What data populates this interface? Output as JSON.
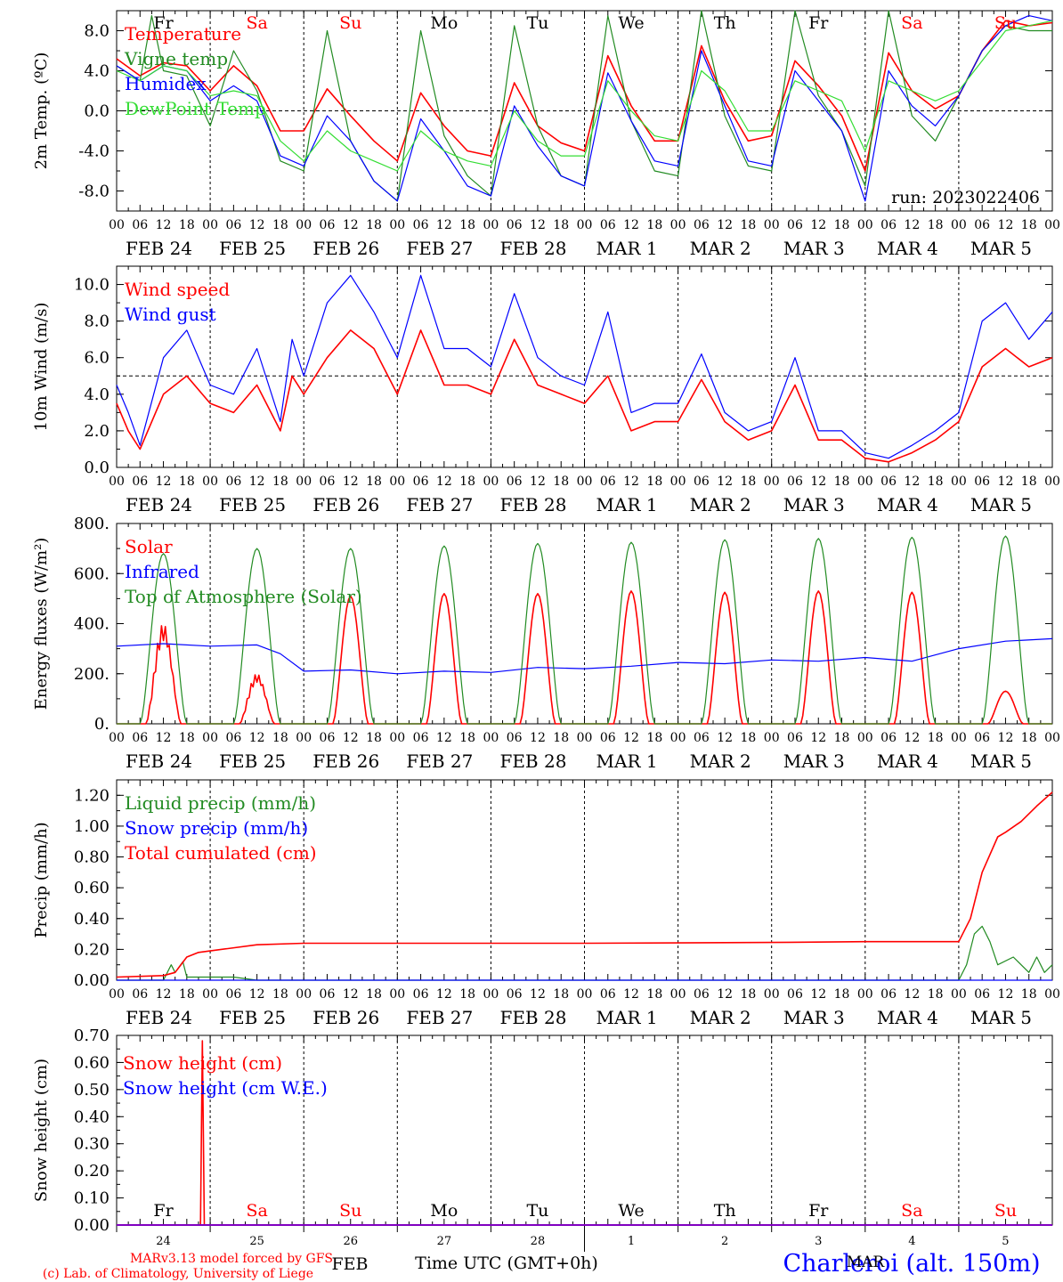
{
  "run_label": "run: 2023022406",
  "model_credit": "MARv3.13 model forced by GFS",
  "lab_credit": "(c) Lab. of Climatology, University of Liege",
  "station": "Charleroi (alt. 150m)",
  "x_axis": {
    "hour_labels": [
      "00",
      "06",
      "12",
      "18"
    ],
    "end_label": "00",
    "dates": [
      "FEB 24",
      "FEB 25",
      "FEB 26",
      "FEB 27",
      "FEB 28",
      "MAR 1",
      "MAR 2",
      "MAR 3",
      "MAR 4",
      "MAR 5"
    ],
    "weekdays": [
      {
        "label": "Fr",
        "weekend": false
      },
      {
        "label": "Sa",
        "weekend": true
      },
      {
        "label": "Su",
        "weekend": true
      },
      {
        "label": "Mo",
        "weekend": false
      },
      {
        "label": "Tu",
        "weekend": false
      },
      {
        "label": "We",
        "weekend": false
      },
      {
        "label": "Th",
        "weekend": false
      },
      {
        "label": "Fr",
        "weekend": false
      },
      {
        "label": "Sa",
        "weekend": true
      },
      {
        "label": "Su",
        "weekend": true
      }
    ],
    "day_numbers": [
      "24",
      "25",
      "26",
      "27",
      "28",
      "1",
      "2",
      "3",
      "4",
      "5"
    ],
    "month_feb": "FEB",
    "month_mar": "MAR",
    "time_title": "Time UTC (GMT+0h)"
  },
  "colors": {
    "red": "#ff0000",
    "green": "#228b22",
    "blue": "#0000ff",
    "lightgreen": "#33dd33",
    "weekend": "#ff0000"
  },
  "chart_data": [
    {
      "id": "temp",
      "type": "line",
      "ylabel": "2m Temp. (ºC)",
      "ylim": [
        -10,
        10
      ],
      "yticks": [
        -8,
        -4,
        0,
        4,
        8
      ],
      "tick_labels": [
        "-8.0",
        "-4.0",
        "0.0",
        "4.0",
        "8.0"
      ],
      "ref_line": 0,
      "x_unit": "hours since FEB 24 00 UTC",
      "series": [
        {
          "name": "Temperature",
          "color": "red",
          "x": [
            0,
            6,
            12,
            18,
            24,
            30,
            36,
            42,
            48,
            54,
            60,
            66,
            72,
            78,
            84,
            90,
            96,
            102,
            108,
            114,
            120,
            126,
            132,
            138,
            144,
            150,
            156,
            162,
            168,
            174,
            180,
            186,
            192,
            198,
            204,
            210,
            216,
            222,
            228,
            234,
            240
          ],
          "y": [
            5.2,
            3.5,
            4.8,
            4.5,
            2.0,
            4.5,
            2.5,
            -2.0,
            -2.0,
            2.2,
            -0.5,
            -3.0,
            -5.0,
            1.8,
            -1.5,
            -4.0,
            -4.5,
            2.8,
            -1.5,
            -3.2,
            -4.0,
            5.5,
            0.5,
            -3.0,
            -3.0,
            6.5,
            1.0,
            -3.0,
            -2.5,
            5.0,
            2.5,
            -0.5,
            -6.0,
            5.8,
            2.0,
            0.2,
            1.5,
            6.0,
            9.0,
            8.5,
            8.8
          ]
        },
        {
          "name": "Vigne temp",
          "color": "green",
          "x": [
            0,
            6,
            9,
            12,
            18,
            24,
            30,
            36,
            42,
            48,
            54,
            60,
            66,
            72,
            78,
            84,
            90,
            96,
            102,
            108,
            114,
            120,
            126,
            132,
            138,
            144,
            150,
            156,
            162,
            168,
            174,
            180,
            186,
            192,
            198,
            204,
            210,
            216,
            222,
            228,
            234,
            240
          ],
          "y": [
            4.5,
            3.0,
            9.5,
            4.0,
            3.5,
            -1.5,
            6.0,
            2.0,
            -5.0,
            -6.0,
            8.0,
            -3.0,
            -7.0,
            -9.0,
            8.0,
            -2.5,
            -6.5,
            -8.5,
            8.5,
            -1.5,
            -6.5,
            -7.5,
            9.5,
            -1.0,
            -6.0,
            -6.5,
            10.0,
            -0.5,
            -5.5,
            -6.0,
            10.0,
            1.5,
            -2.0,
            -7.5,
            10.0,
            -0.5,
            -3.0,
            1.5,
            6.0,
            8.5,
            8.0,
            8.0
          ]
        },
        {
          "name": "Humidex",
          "color": "blue",
          "x": [
            0,
            6,
            12,
            18,
            24,
            30,
            36,
            42,
            48,
            54,
            60,
            66,
            72,
            78,
            84,
            90,
            96,
            102,
            108,
            114,
            120,
            126,
            132,
            138,
            144,
            150,
            156,
            162,
            168,
            174,
            180,
            186,
            192,
            198,
            204,
            210,
            216,
            222,
            228,
            234,
            240
          ],
          "y": [
            4.5,
            3.0,
            4.5,
            4.0,
            1.0,
            2.5,
            1.0,
            -4.5,
            -5.5,
            -0.5,
            -3.0,
            -7.0,
            -9.0,
            -0.8,
            -4.0,
            -7.5,
            -8.5,
            0.5,
            -3.5,
            -6.5,
            -7.5,
            3.8,
            -1.0,
            -5.0,
            -5.5,
            6.0,
            0.5,
            -5.0,
            -5.5,
            4.0,
            1.0,
            -2.0,
            -9.0,
            4.0,
            0.5,
            -1.5,
            1.5,
            6.0,
            8.5,
            9.5,
            9.0
          ]
        },
        {
          "name": "DewPoint Temp",
          "color": "lightgreen",
          "x": [
            0,
            6,
            12,
            18,
            24,
            30,
            36,
            42,
            48,
            54,
            60,
            66,
            72,
            78,
            84,
            90,
            96,
            102,
            108,
            114,
            120,
            126,
            132,
            138,
            144,
            150,
            156,
            162,
            168,
            174,
            180,
            186,
            192,
            198,
            204,
            210,
            216,
            222,
            228,
            234,
            240
          ],
          "y": [
            4.0,
            3.0,
            4.5,
            4.0,
            1.5,
            2.0,
            1.5,
            -3.0,
            -5.0,
            -2.0,
            -4.0,
            -5.0,
            -6.0,
            -2.0,
            -4.0,
            -5.0,
            -5.5,
            0.0,
            -3.0,
            -4.5,
            -4.5,
            3.0,
            0.0,
            -2.5,
            -3.0,
            4.0,
            2.0,
            -2.0,
            -2.0,
            3.0,
            2.0,
            1.0,
            -4.0,
            3.0,
            2.0,
            1.0,
            2.0,
            5.0,
            8.0,
            8.5,
            9.0
          ]
        }
      ]
    },
    {
      "id": "wind",
      "type": "line",
      "ylabel": "10m Wind (m/s)",
      "ylim": [
        0,
        11
      ],
      "yticks": [
        0,
        2,
        4,
        6,
        8,
        10
      ],
      "tick_labels": [
        "0.0",
        "2.0",
        "4.0",
        "6.0",
        "8.0",
        "10.0"
      ],
      "ref_line": 5,
      "series": [
        {
          "name": "Wind speed",
          "color": "red",
          "x": [
            0,
            3,
            6,
            12,
            18,
            24,
            30,
            36,
            42,
            45,
            48,
            54,
            60,
            66,
            72,
            78,
            84,
            90,
            96,
            102,
            108,
            114,
            120,
            126,
            132,
            138,
            144,
            150,
            156,
            162,
            168,
            174,
            180,
            186,
            192,
            198,
            204,
            210,
            216,
            222,
            228,
            234,
            240
          ],
          "y": [
            3.5,
            2.0,
            1.0,
            4.0,
            5.0,
            3.5,
            3.0,
            4.5,
            2.0,
            5.0,
            4.0,
            6.0,
            7.5,
            6.5,
            4.0,
            7.5,
            4.5,
            4.5,
            4.0,
            7.0,
            4.5,
            4.0,
            3.5,
            5.0,
            2.0,
            2.5,
            2.5,
            4.8,
            2.5,
            1.5,
            2.0,
            4.5,
            1.5,
            1.5,
            0.5,
            0.3,
            0.8,
            1.5,
            2.5,
            5.5,
            6.5,
            5.5,
            6.0
          ]
        },
        {
          "name": "Wind gust",
          "color": "blue",
          "x": [
            0,
            3,
            6,
            12,
            18,
            24,
            30,
            36,
            42,
            45,
            48,
            54,
            60,
            66,
            72,
            78,
            84,
            90,
            96,
            102,
            108,
            114,
            120,
            126,
            132,
            138,
            144,
            150,
            156,
            162,
            168,
            174,
            180,
            186,
            192,
            198,
            204,
            210,
            216,
            222,
            228,
            234,
            240
          ],
          "y": [
            4.5,
            3.0,
            1.2,
            6.0,
            7.5,
            4.5,
            4.0,
            6.5,
            2.5,
            7.0,
            5.0,
            9.0,
            10.5,
            8.5,
            6.0,
            10.5,
            6.5,
            6.5,
            5.5,
            9.5,
            6.0,
            5.0,
            4.5,
            8.5,
            3.0,
            3.5,
            3.5,
            6.2,
            3.0,
            2.0,
            2.5,
            6.0,
            2.0,
            2.0,
            0.8,
            0.5,
            1.2,
            2.0,
            3.0,
            8.0,
            9.0,
            7.0,
            8.5
          ]
        }
      ]
    },
    {
      "id": "energy",
      "type": "line",
      "ylabel": "Energy fluxes (W/m²)",
      "ylim": [
        0,
        800
      ],
      "yticks": [
        0,
        200,
        400,
        600,
        800
      ],
      "tick_labels": [
        "0.",
        "200.",
        "400.",
        "600.",
        "800."
      ],
      "series": [
        {
          "name": "Solar",
          "color": "red",
          "daily_peaks": [
            420,
            210,
            510,
            520,
            520,
            530,
            525,
            530,
            525,
            130
          ]
        },
        {
          "name": "Infrared",
          "color": "blue",
          "x": [
            0,
            12,
            24,
            36,
            42,
            48,
            60,
            72,
            84,
            96,
            108,
            120,
            132,
            144,
            156,
            168,
            180,
            192,
            204,
            216,
            228,
            240
          ],
          "y": [
            310,
            320,
            310,
            315,
            280,
            210,
            215,
            200,
            210,
            205,
            225,
            220,
            230,
            245,
            240,
            255,
            250,
            265,
            250,
            300,
            330,
            340
          ]
        },
        {
          "name": "Top of Atmosphere (Solar)",
          "color": "green",
          "daily_peaks": [
            680,
            700,
            700,
            710,
            720,
            725,
            735,
            740,
            745,
            750
          ]
        }
      ]
    },
    {
      "id": "precip",
      "type": "line",
      "ylabel": "Precip (mm/h)",
      "ylim": [
        0,
        1.3
      ],
      "yticks": [
        0,
        0.2,
        0.4,
        0.6,
        0.8,
        1.0,
        1.2
      ],
      "tick_labels": [
        "0.00",
        "0.20",
        "0.40",
        "0.60",
        "0.80",
        "1.00",
        "1.20"
      ],
      "series": [
        {
          "name": "Liquid precip (mm/h)",
          "color": "green",
          "x": [
            0,
            12,
            14,
            15,
            17,
            18,
            24,
            30,
            36,
            48,
            216,
            218,
            220,
            222,
            224,
            226,
            230,
            234,
            236,
            238,
            240
          ],
          "y": [
            0,
            0,
            0.1,
            0.05,
            0.12,
            0.02,
            0.02,
            0.02,
            0,
            0,
            0,
            0.1,
            0.3,
            0.35,
            0.25,
            0.1,
            0.15,
            0.05,
            0.15,
            0.05,
            0.1
          ]
        },
        {
          "name": "Snow precip (mm/h)",
          "color": "blue",
          "x": [
            0,
            240
          ],
          "y": [
            0,
            0
          ]
        },
        {
          "name": "Total cumulated (cm)",
          "color": "red",
          "x": [
            0,
            12,
            15,
            18,
            21,
            24,
            36,
            48,
            72,
            120,
            168,
            192,
            216,
            219,
            222,
            226,
            228,
            232,
            236,
            240
          ],
          "y": [
            0.02,
            0.03,
            0.05,
            0.15,
            0.18,
            0.19,
            0.23,
            0.24,
            0.24,
            0.24,
            0.245,
            0.25,
            0.25,
            0.4,
            0.7,
            0.93,
            0.96,
            1.03,
            1.13,
            1.22
          ]
        }
      ]
    },
    {
      "id": "snow",
      "type": "line",
      "ylabel": "Snow height (cm)",
      "ylim": [
        0,
        0.7
      ],
      "yticks": [
        0,
        0.1,
        0.2,
        0.3,
        0.4,
        0.5,
        0.6,
        0.7
      ],
      "tick_labels": [
        "0.00",
        "0.10",
        "0.20",
        "0.30",
        "0.40",
        "0.50",
        "0.60",
        "0.70"
      ],
      "series": [
        {
          "name": "Snow height (cm)",
          "color": "red",
          "x": [
            0,
            21.5,
            22,
            22.5,
            240
          ],
          "y": [
            0,
            0,
            0.68,
            0,
            0
          ]
        },
        {
          "name": "Snow height (cm W.E.)",
          "color": "blue",
          "x": [
            0,
            240
          ],
          "y": [
            0,
            0
          ]
        }
      ]
    }
  ]
}
